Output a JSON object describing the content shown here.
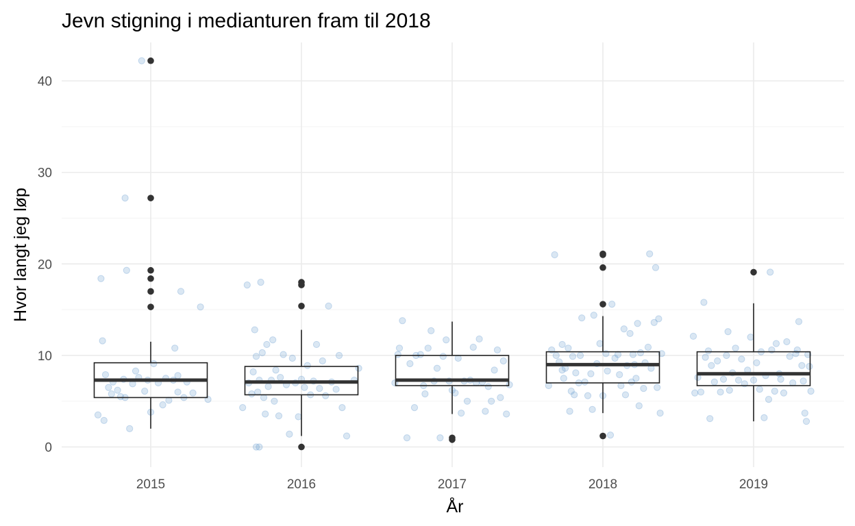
{
  "chart_data": {
    "type": "box",
    "title": "Jevn stigning i medianturen fram til 2018",
    "xlabel": "År",
    "ylabel": "Hvor langt jeg løp",
    "categories": [
      "2015",
      "2016",
      "2017",
      "2018",
      "2019"
    ],
    "y_ticks": [
      0,
      10,
      20,
      30,
      40
    ],
    "ylim": [
      -2.2,
      44.2
    ],
    "grid": true,
    "colors": {
      "jitter_points": "#6a9fd0",
      "box": "#222222",
      "median": "#333333",
      "outliers": "#333333",
      "grid": "#ebebeb"
    },
    "boxes": [
      {
        "category": "2015",
        "q1": 5.4,
        "median": 7.3,
        "q3": 9.2,
        "whisker_low": 2.0,
        "whisker_high": 11.5,
        "outliers": [
          15.3,
          17.0,
          18.4,
          19.3,
          27.2,
          42.2
        ]
      },
      {
        "category": "2016",
        "q1": 5.7,
        "median": 7.1,
        "q3": 8.8,
        "whisker_low": 1.2,
        "whisker_high": 12.8,
        "outliers": [
          0.0,
          15.4,
          17.7,
          18.0
        ]
      },
      {
        "category": "2017",
        "q1": 6.7,
        "median": 7.3,
        "q3": 10.0,
        "whisker_low": 3.6,
        "whisker_high": 13.7,
        "outliers": [
          0.8,
          1.0
        ]
      },
      {
        "category": "2018",
        "q1": 7.0,
        "median": 9.0,
        "q3": 10.4,
        "whisker_low": 3.7,
        "whisker_high": 14.3,
        "outliers": [
          1.2,
          15.6,
          19.6,
          21.0,
          21.1
        ]
      },
      {
        "category": "2019",
        "q1": 6.7,
        "median": 8.0,
        "q3": 10.4,
        "whisker_low": 2.8,
        "whisker_high": 15.7,
        "outliers": [
          19.1
        ]
      }
    ],
    "jitter_points": [
      {
        "category": "2015",
        "values": [
          {
            "x": -0.35,
            "y": 3.5
          },
          {
            "x": -0.31,
            "y": 2.9
          },
          {
            "x": -0.33,
            "y": 18.4
          },
          {
            "x": -0.32,
            "y": 11.6
          },
          {
            "x": -0.3,
            "y": 7.9
          },
          {
            "x": -0.28,
            "y": 6.5
          },
          {
            "x": -0.26,
            "y": 5.8
          },
          {
            "x": -0.25,
            "y": 7.1
          },
          {
            "x": -0.22,
            "y": 6.2
          },
          {
            "x": -0.2,
            "y": 5.5
          },
          {
            "x": -0.18,
            "y": 7.4
          },
          {
            "x": -0.17,
            "y": 5.4
          },
          {
            "x": -0.16,
            "y": 19.3
          },
          {
            "x": -0.14,
            "y": 2.0
          },
          {
            "x": -0.12,
            "y": 6.9
          },
          {
            "x": -0.1,
            "y": 8.3
          },
          {
            "x": -0.08,
            "y": 7.6
          },
          {
            "x": -0.06,
            "y": 42.2
          },
          {
            "x": -0.04,
            "y": 6.1
          },
          {
            "x": -0.02,
            "y": 7.3
          },
          {
            "x": 0.0,
            "y": 3.8
          },
          {
            "x": 0.02,
            "y": 9.1
          },
          {
            "x": 0.05,
            "y": 7.0
          },
          {
            "x": 0.08,
            "y": 4.6
          },
          {
            "x": 0.1,
            "y": 7.5
          },
          {
            "x": 0.12,
            "y": 5.1
          },
          {
            "x": 0.15,
            "y": 7.3
          },
          {
            "x": 0.16,
            "y": 10.8
          },
          {
            "x": 0.18,
            "y": 7.8
          },
          {
            "x": 0.18,
            "y": 6.0
          },
          {
            "x": 0.2,
            "y": 17.0
          },
          {
            "x": 0.22,
            "y": 5.4
          },
          {
            "x": 0.24,
            "y": 7.1
          },
          {
            "x": 0.28,
            "y": 5.9
          },
          {
            "x": 0.33,
            "y": 15.3
          },
          {
            "x": 0.38,
            "y": 5.2
          },
          {
            "x": -0.17,
            "y": 27.2
          }
        ]
      },
      {
        "category": "2016",
        "values": [
          {
            "x": -0.39,
            "y": 4.3
          },
          {
            "x": -0.36,
            "y": 17.7
          },
          {
            "x": -0.35,
            "y": 7.0
          },
          {
            "x": -0.33,
            "y": 5.8
          },
          {
            "x": -0.32,
            "y": 8.2
          },
          {
            "x": -0.31,
            "y": 12.8
          },
          {
            "x": -0.3,
            "y": 0.0
          },
          {
            "x": -0.3,
            "y": 9.9
          },
          {
            "x": -0.29,
            "y": 6.0
          },
          {
            "x": -0.28,
            "y": 0.0
          },
          {
            "x": -0.28,
            "y": 7.3
          },
          {
            "x": -0.27,
            "y": 18.0
          },
          {
            "x": -0.26,
            "y": 10.3
          },
          {
            "x": -0.25,
            "y": 5.4
          },
          {
            "x": -0.24,
            "y": 3.6
          },
          {
            "x": -0.23,
            "y": 11.2
          },
          {
            "x": -0.22,
            "y": 6.6
          },
          {
            "x": -0.2,
            "y": 7.3
          },
          {
            "x": -0.19,
            "y": 11.7
          },
          {
            "x": -0.18,
            "y": 5.0
          },
          {
            "x": -0.17,
            "y": 8.4
          },
          {
            "x": -0.15,
            "y": 3.4
          },
          {
            "x": -0.14,
            "y": 7.6
          },
          {
            "x": -0.12,
            "y": 10.1
          },
          {
            "x": -0.1,
            "y": 6.8
          },
          {
            "x": -0.08,
            "y": 1.4
          },
          {
            "x": -0.06,
            "y": 9.7
          },
          {
            "x": -0.04,
            "y": 7.0
          },
          {
            "x": -0.02,
            "y": 3.3
          },
          {
            "x": 0.0,
            "y": 7.4
          },
          {
            "x": 0.02,
            "y": 6.5
          },
          {
            "x": 0.04,
            "y": 8.9
          },
          {
            "x": 0.06,
            "y": 5.7
          },
          {
            "x": 0.08,
            "y": 7.2
          },
          {
            "x": 0.1,
            "y": 11.2
          },
          {
            "x": 0.12,
            "y": 6.4
          },
          {
            "x": 0.14,
            "y": 9.4
          },
          {
            "x": 0.16,
            "y": 5.6
          },
          {
            "x": 0.18,
            "y": 15.4
          },
          {
            "x": 0.2,
            "y": 7.1
          },
          {
            "x": 0.23,
            "y": 6.3
          },
          {
            "x": 0.25,
            "y": 10.0
          },
          {
            "x": 0.27,
            "y": 4.3
          },
          {
            "x": 0.3,
            "y": 1.2
          },
          {
            "x": 0.35,
            "y": 7.3
          },
          {
            "x": 0.38,
            "y": 8.6
          }
        ]
      },
      {
        "category": "2017",
        "values": [
          {
            "x": -0.38,
            "y": 7.0
          },
          {
            "x": -0.36,
            "y": 10.1
          },
          {
            "x": -0.35,
            "y": 10.8
          },
          {
            "x": -0.33,
            "y": 13.8
          },
          {
            "x": -0.3,
            "y": 1.0
          },
          {
            "x": -0.28,
            "y": 9.1
          },
          {
            "x": -0.25,
            "y": 4.3
          },
          {
            "x": -0.24,
            "y": 10.0
          },
          {
            "x": -0.21,
            "y": 10.1
          },
          {
            "x": -0.19,
            "y": 6.7
          },
          {
            "x": -0.18,
            "y": 5.8
          },
          {
            "x": -0.16,
            "y": 10.8
          },
          {
            "x": -0.14,
            "y": 12.7
          },
          {
            "x": -0.12,
            "y": 7.2
          },
          {
            "x": -0.1,
            "y": 8.6
          },
          {
            "x": -0.08,
            "y": 1.0
          },
          {
            "x": -0.06,
            "y": 9.9
          },
          {
            "x": -0.04,
            "y": 11.7
          },
          {
            "x": -0.02,
            "y": 7.2
          },
          {
            "x": 0.0,
            "y": 6.2
          },
          {
            "x": 0.02,
            "y": 5.9
          },
          {
            "x": 0.04,
            "y": 9.7
          },
          {
            "x": 0.06,
            "y": 3.7
          },
          {
            "x": 0.08,
            "y": 7.2
          },
          {
            "x": 0.1,
            "y": 5.0
          },
          {
            "x": 0.12,
            "y": 7.3
          },
          {
            "x": 0.14,
            "y": 10.9
          },
          {
            "x": 0.16,
            "y": 7.0
          },
          {
            "x": 0.18,
            "y": 11.8
          },
          {
            "x": 0.2,
            "y": 7.1
          },
          {
            "x": 0.22,
            "y": 3.9
          },
          {
            "x": 0.24,
            "y": 6.6
          },
          {
            "x": 0.26,
            "y": 5.0
          },
          {
            "x": 0.28,
            "y": 8.4
          },
          {
            "x": 0.3,
            "y": 10.6
          },
          {
            "x": 0.32,
            "y": 5.4
          },
          {
            "x": 0.34,
            "y": 9.4
          },
          {
            "x": 0.36,
            "y": 3.6
          },
          {
            "x": 0.38,
            "y": 6.8
          }
        ]
      },
      {
        "category": "2018",
        "values": [
          {
            "x": -0.36,
            "y": 6.7
          },
          {
            "x": -0.34,
            "y": 10.6
          },
          {
            "x": -0.32,
            "y": 21.0
          },
          {
            "x": -0.31,
            "y": 10.0
          },
          {
            "x": -0.29,
            "y": 9.3
          },
          {
            "x": -0.27,
            "y": 11.2
          },
          {
            "x": -0.26,
            "y": 7.5
          },
          {
            "x": -0.25,
            "y": 8.6
          },
          {
            "x": -0.23,
            "y": 10.8
          },
          {
            "x": -0.22,
            "y": 3.9
          },
          {
            "x": -0.21,
            "y": 6.1
          },
          {
            "x": -0.2,
            "y": 9.9
          },
          {
            "x": -0.19,
            "y": 5.7
          },
          {
            "x": -0.18,
            "y": 8.1
          },
          {
            "x": -0.16,
            "y": 7.0
          },
          {
            "x": -0.15,
            "y": 10.0
          },
          {
            "x": -0.14,
            "y": 14.1
          },
          {
            "x": -0.12,
            "y": 7.1
          },
          {
            "x": -0.1,
            "y": 5.6
          },
          {
            "x": -0.08,
            "y": 8.0
          },
          {
            "x": -0.07,
            "y": 4.1
          },
          {
            "x": -0.06,
            "y": 14.4
          },
          {
            "x": -0.04,
            "y": 9.1
          },
          {
            "x": -0.02,
            "y": 11.3
          },
          {
            "x": 0.0,
            "y": 5.6
          },
          {
            "x": 0.02,
            "y": 10.2
          },
          {
            "x": 0.03,
            "y": 8.3
          },
          {
            "x": 0.05,
            "y": 1.3
          },
          {
            "x": 0.06,
            "y": 15.6
          },
          {
            "x": 0.08,
            "y": 9.7
          },
          {
            "x": 0.1,
            "y": 10.1
          },
          {
            "x": 0.12,
            "y": 6.7
          },
          {
            "x": 0.14,
            "y": 12.9
          },
          {
            "x": 0.15,
            "y": 5.7
          },
          {
            "x": 0.16,
            "y": 8.9
          },
          {
            "x": 0.18,
            "y": 12.4
          },
          {
            "x": 0.19,
            "y": 7.1
          },
          {
            "x": 0.2,
            "y": 10.1
          },
          {
            "x": 0.21,
            "y": 9.0
          },
          {
            "x": 0.22,
            "y": 7.5
          },
          {
            "x": 0.23,
            "y": 13.5
          },
          {
            "x": 0.24,
            "y": 4.5
          },
          {
            "x": 0.25,
            "y": 10.3
          },
          {
            "x": 0.27,
            "y": 6.4
          },
          {
            "x": 0.28,
            "y": 9.2
          },
          {
            "x": 0.3,
            "y": 10.9
          },
          {
            "x": 0.31,
            "y": 21.1
          },
          {
            "x": 0.32,
            "y": 8.6
          },
          {
            "x": 0.34,
            "y": 13.6
          },
          {
            "x": 0.35,
            "y": 19.6
          },
          {
            "x": 0.36,
            "y": 6.5
          },
          {
            "x": 0.37,
            "y": 14.0
          },
          {
            "x": 0.38,
            "y": 3.7
          },
          {
            "x": 0.39,
            "y": 10.2
          },
          {
            "x": -0.27,
            "y": 8.4
          },
          {
            "x": 0.11,
            "y": 7.9
          }
        ]
      },
      {
        "category": "2019",
        "values": [
          {
            "x": -0.4,
            "y": 12.1
          },
          {
            "x": -0.39,
            "y": 5.9
          },
          {
            "x": -0.37,
            "y": 7.6
          },
          {
            "x": -0.35,
            "y": 6.0
          },
          {
            "x": -0.33,
            "y": 15.8
          },
          {
            "x": -0.32,
            "y": 9.8
          },
          {
            "x": -0.3,
            "y": 10.5
          },
          {
            "x": -0.29,
            "y": 3.1
          },
          {
            "x": -0.28,
            "y": 8.9
          },
          {
            "x": -0.26,
            "y": 7.1
          },
          {
            "x": -0.24,
            "y": 9.4
          },
          {
            "x": -0.22,
            "y": 6.0
          },
          {
            "x": -0.2,
            "y": 7.4
          },
          {
            "x": -0.18,
            "y": 10.0
          },
          {
            "x": -0.17,
            "y": 12.6
          },
          {
            "x": -0.16,
            "y": 6.2
          },
          {
            "x": -0.14,
            "y": 8.1
          },
          {
            "x": -0.12,
            "y": 10.8
          },
          {
            "x": -0.1,
            "y": 7.3
          },
          {
            "x": -0.08,
            "y": 9.6
          },
          {
            "x": -0.06,
            "y": 6.9
          },
          {
            "x": -0.04,
            "y": 8.4
          },
          {
            "x": -0.02,
            "y": 12.0
          },
          {
            "x": 0.0,
            "y": 7.3
          },
          {
            "x": 0.02,
            "y": 9.2
          },
          {
            "x": 0.04,
            "y": 6.3
          },
          {
            "x": 0.05,
            "y": 10.4
          },
          {
            "x": 0.07,
            "y": 3.2
          },
          {
            "x": 0.08,
            "y": 7.8
          },
          {
            "x": 0.1,
            "y": 5.2
          },
          {
            "x": 0.11,
            "y": 19.1
          },
          {
            "x": 0.12,
            "y": 10.6
          },
          {
            "x": 0.14,
            "y": 6.1
          },
          {
            "x": 0.15,
            "y": 11.3
          },
          {
            "x": 0.17,
            "y": 8.0
          },
          {
            "x": 0.18,
            "y": 7.4
          },
          {
            "x": 0.2,
            "y": 5.9
          },
          {
            "x": 0.22,
            "y": 11.5
          },
          {
            "x": 0.24,
            "y": 9.9
          },
          {
            "x": 0.26,
            "y": 7.0
          },
          {
            "x": 0.28,
            "y": 10.2
          },
          {
            "x": 0.3,
            "y": 13.7
          },
          {
            "x": 0.32,
            "y": 8.9
          },
          {
            "x": 0.33,
            "y": 7.2
          },
          {
            "x": 0.34,
            "y": 3.7
          },
          {
            "x": 0.35,
            "y": 2.8
          },
          {
            "x": 0.37,
            "y": 8.8
          },
          {
            "x": 0.38,
            "y": 6.1
          },
          {
            "x": 0.36,
            "y": 10.1
          },
          {
            "x": 0.29,
            "y": 10.6
          }
        ]
      }
    ]
  }
}
